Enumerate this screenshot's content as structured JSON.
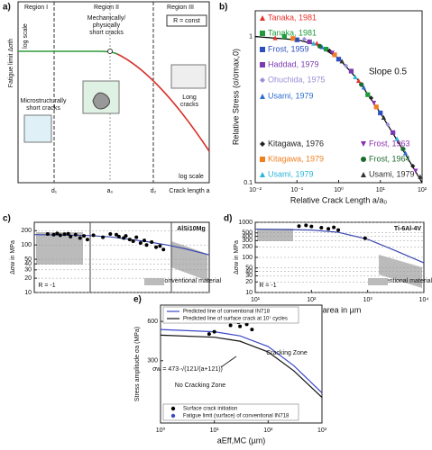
{
  "chart_data": [
    {
      "type": "schematic",
      "label": "a)",
      "ylabel": "Fatigue limit Δσth",
      "regions": [
        "Region I",
        "Region II",
        "Region III"
      ],
      "annotations": [
        "log scale",
        "Mechanically/",
        "physically",
        "short cracks",
        "R = const",
        "Microstructurally",
        "short cracks",
        "Long",
        "cracks",
        "log scale"
      ],
      "xlabels": [
        "d₁",
        "a₀",
        "d₂",
        "Crack length a"
      ]
    },
    {
      "type": "scatter",
      "label": "b)",
      "xlabel": "Relative Crack Length a/a₀",
      "ylabel": "Relative Stress (σ/σmax,0)",
      "xscale": "log",
      "yscale": "log",
      "xlim": [
        0.01,
        100
      ],
      "ylim": [
        0.1,
        1.5
      ],
      "xticks": [
        {
          "value": 0.01,
          "label": "10⁻²"
        },
        {
          "value": 0.1,
          "label": "10⁻¹"
        },
        {
          "value": 1,
          "label": "10⁰"
        },
        {
          "value": 10,
          "label": "10¹"
        },
        {
          "value": 100,
          "label": "10²"
        }
      ],
      "yticks": [
        0.1,
        1
      ],
      "grid": false,
      "annotations": [
        "Slope 0.5"
      ],
      "fit": {
        "color": "#000000",
        "x": [
          0.01,
          0.1,
          0.3,
          1,
          3,
          10,
          30,
          100
        ],
        "values": [
          1,
          0.95,
          0.88,
          0.71,
          0.5,
          0.3,
          0.18,
          0.1
        ]
      },
      "series": [
        {
          "name": "Tanaka, 1981",
          "color": "#e8312a",
          "marker": "triangle",
          "x": [
            0.03,
            0.3,
            3
          ],
          "values": [
            0.98,
            0.9,
            0.5
          ]
        },
        {
          "name": "Tanaka, 1981",
          "color": "#1e9a3c",
          "marker": "square",
          "x": [
            0.05,
            0.5,
            5
          ],
          "values": [
            1.0,
            0.82,
            0.4
          ]
        },
        {
          "name": "Frost, 1959",
          "color": "#2b4fbf",
          "marker": "square",
          "x": [
            0.1,
            1,
            10
          ],
          "values": [
            0.95,
            0.7,
            0.3
          ]
        },
        {
          "name": "Haddad, 1979",
          "color": "#7a3ab0",
          "marker": "square",
          "x": [
            0.2,
            2,
            20
          ],
          "values": [
            0.92,
            0.58,
            0.22
          ]
        },
        {
          "name": "Ohuchida, 1975",
          "color": "#9a8fd6",
          "marker": "diamond",
          "x": [
            0.15,
            1.5,
            15
          ],
          "values": [
            0.96,
            0.63,
            0.25
          ]
        },
        {
          "name": "Usami, 1979",
          "color": "#2f6fd0",
          "marker": "triangle",
          "x": [
            0.4,
            4,
            40
          ],
          "values": [
            0.85,
            0.45,
            0.16
          ]
        },
        {
          "name": "Kitagawa, 1976",
          "color": "#222222",
          "marker": "diamond",
          "x": [
            0.6,
            6,
            60
          ],
          "values": [
            0.8,
            0.38,
            0.13
          ]
        },
        {
          "name": "Kitagawa, 1979",
          "color": "#f07f1e",
          "marker": "square",
          "x": [
            0.08,
            0.8,
            8
          ],
          "values": [
            0.97,
            0.75,
            0.33
          ]
        },
        {
          "name": "Usami, 1979",
          "color": "#2bb5d8",
          "marker": "triangle",
          "x": [
            0.25,
            2.5,
            25
          ],
          "values": [
            0.9,
            0.53,
            0.2
          ]
        },
        {
          "name": "Frost, 1963",
          "color": "#8b2fb0",
          "marker": "triangle-down",
          "x": [
            0.7,
            7,
            70
          ],
          "values": [
            0.77,
            0.35,
            0.12
          ]
        },
        {
          "name": "Frost, 1964",
          "color": "#1d6b2e",
          "marker": "circle",
          "x": [
            0.35,
            3.5,
            35
          ],
          "values": [
            0.86,
            0.47,
            0.17
          ]
        },
        {
          "name": "Usami, 1979",
          "color": "#333333",
          "marker": "triangle",
          "x": [
            1.2,
            12,
            90
          ],
          "values": [
            0.68,
            0.28,
            0.11
          ]
        }
      ]
    },
    {
      "type": "scatter",
      "label": "c)",
      "ylabel": "Δσw in MPa",
      "xscale": "log",
      "yscale": "log",
      "xlim": [
        10,
        2000
      ],
      "ylim": [
        10,
        300
      ],
      "yticks": [
        10,
        20,
        30,
        40,
        50,
        100,
        200
      ],
      "grid": true,
      "annotations": [
        "AlSi10Mg",
        "R = -1",
        "conventional material"
      ],
      "fit": {
        "color": "#3a48b0",
        "x": [
          10,
          50,
          100,
          300,
          600,
          1000,
          2000
        ],
        "values": [
          165,
          158,
          148,
          118,
          98,
          82,
          62
        ]
      },
      "series": [
        {
          "color": "#000000",
          "marker": "circle",
          "x": [
            15,
            18,
            20,
            22,
            25,
            28,
            30,
            35,
            40,
            45,
            50,
            60,
            80,
            100,
            120,
            130,
            150,
            160,
            180,
            200,
            220,
            250,
            280,
            300,
            350,
            400,
            450,
            500
          ],
          "values": [
            170,
            165,
            175,
            160,
            168,
            172,
            150,
            165,
            140,
            155,
            130,
            160,
            145,
            170,
            165,
            150,
            140,
            155,
            130,
            120,
            145,
            110,
            125,
            100,
            115,
            90,
            95,
            80
          ]
        }
      ]
    },
    {
      "type": "scatter",
      "label": "d)",
      "xlabel": "√area in µm",
      "ylabel": "Δσw in MPa",
      "xscale": "log",
      "yscale": "log",
      "xlim": [
        10,
        10000
      ],
      "ylim": [
        10,
        1000
      ],
      "xticks": [
        {
          "value": 10,
          "label": "10¹"
        },
        {
          "value": 100,
          "label": "10²"
        },
        {
          "value": 1000,
          "label": "10³"
        },
        {
          "value": 10000,
          "label": "10⁴"
        }
      ],
      "yticks": [
        10,
        20,
        30,
        40,
        50,
        100,
        200,
        300,
        400,
        500,
        1000
      ],
      "grid": true,
      "annotations": [
        "Ti-6Al-4V",
        "R = -1",
        "conventional material"
      ],
      "fit": {
        "color": "#3a48b0",
        "x": [
          10,
          100,
          300,
          1000,
          3000,
          10000
        ],
        "values": [
          640,
          600,
          520,
          330,
          160,
          70
        ]
      },
      "series": [
        {
          "color": "#000000",
          "marker": "circle",
          "x": [
            60,
            80,
            100,
            150,
            200,
            250,
            300,
            900
          ],
          "values": [
            780,
            820,
            760,
            700,
            650,
            720,
            600,
            350
          ]
        }
      ]
    },
    {
      "type": "line",
      "label": "e)",
      "xlabel": "aEff,MC (µm)",
      "ylabel": "Stress amplitude σa (MPa)",
      "xscale": "log",
      "yscale": "log",
      "xlim": [
        1,
        1000
      ],
      "ylim": [
        100,
        800
      ],
      "xticks": [
        {
          "value": 1,
          "label": "10⁰"
        },
        {
          "value": 10,
          "label": "10¹"
        },
        {
          "value": 100,
          "label": "10²"
        },
        {
          "value": 1000,
          "label": "10³"
        }
      ],
      "yticks": [
        300,
        600
      ],
      "grid": false,
      "annotations": [
        "Cracking Zone",
        "No Cracking Zone",
        "σw = 473·√(121/(a+121))"
      ],
      "series": [
        {
          "name": "Predicted line of conventional IN718",
          "color": "#3a48c8",
          "mode": "line",
          "x": [
            1,
            10,
            30,
            100,
            300,
            1000
          ],
          "values": [
            520,
            500,
            465,
            385,
            275,
            170
          ]
        },
        {
          "name": "Predicted line of surface crack at 10⁷ cycles",
          "color": "#111111",
          "mode": "line",
          "x": [
            1,
            10,
            30,
            100,
            300,
            1000
          ],
          "values": [
            471,
            454,
            423,
            350,
            251,
            157
          ]
        },
        {
          "name": "Surface crack initiation",
          "color": "#000000",
          "marker": "circle",
          "x": [
            8,
            10,
            20,
            25,
            28,
            30,
            35,
            40,
            50
          ],
          "values": [
            480,
            500,
            560,
            600,
            590,
            550,
            600,
            570,
            520
          ]
        },
        {
          "name": "Fatigue limit (surface) of conventional IN718",
          "color": "#3a48c8",
          "marker": "circle",
          "x": [
            30
          ],
          "values": [
            610
          ]
        }
      ]
    }
  ]
}
